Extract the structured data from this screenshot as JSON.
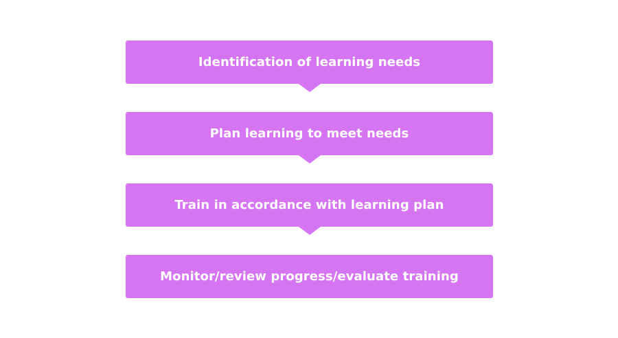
{
  "colors": {
    "box_fill": "#d675f2",
    "text": "#ffffff",
    "background": "#ffffff"
  },
  "steps": [
    {
      "label": "Identification of learning needs"
    },
    {
      "label": "Plan learning to meet needs"
    },
    {
      "label": "Train in accordance with learning plan"
    },
    {
      "label": "Monitor/review progress/evaluate training"
    }
  ]
}
